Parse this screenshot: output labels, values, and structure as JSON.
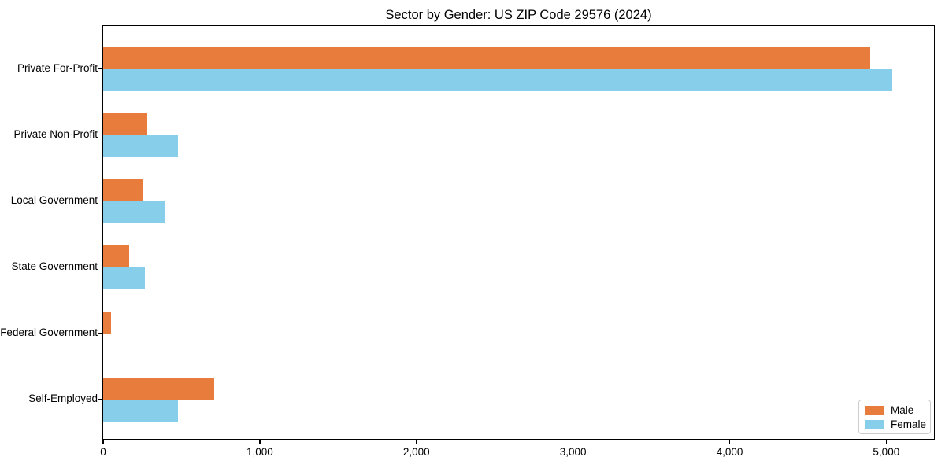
{
  "title": "Sector by Gender: US ZIP Code 29576 (2024)",
  "chart_data": {
    "type": "bar",
    "orientation": "horizontal",
    "title": "Sector by Gender: US ZIP Code 29576 (2024)",
    "xlabel": "",
    "ylabel": "",
    "categories": [
      "Private For-Profit",
      "Private Non-Profit",
      "Local Government",
      "State Government",
      "Federal Government",
      "Self-Employed"
    ],
    "series": [
      {
        "name": "Male",
        "color": "#e87c3c",
        "values": [
          4900,
          280,
          255,
          165,
          50,
          710
        ]
      },
      {
        "name": "Female",
        "color": "#87ceeb",
        "values": [
          5040,
          480,
          390,
          265,
          0,
          480
        ]
      }
    ],
    "xlim": [
      0,
      5300
    ],
    "xticks": {
      "values": [
        0,
        1000,
        2000,
        3000,
        4000,
        5000
      ],
      "labels": [
        "0",
        "1,000",
        "2,000",
        "3,000",
        "4,000",
        "5,000"
      ]
    },
    "grid": false,
    "legend": {
      "position": "lower right"
    },
    "background": "#ffffff"
  }
}
